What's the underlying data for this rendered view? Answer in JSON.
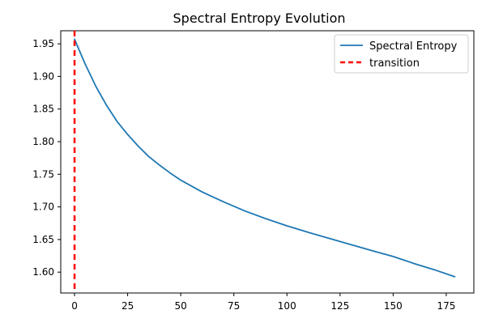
{
  "chart_data": {
    "type": "line",
    "title": "Spectral Entropy Evolution",
    "xlabel": "",
    "ylabel": "",
    "xlim": [
      -6.5,
      188
    ],
    "ylim": [
      1.568,
      1.97
    ],
    "xticks": [
      0,
      25,
      50,
      75,
      100,
      125,
      150,
      175
    ],
    "yticks": [
      1.6,
      1.65,
      1.7,
      1.75,
      1.8,
      1.85,
      1.9,
      1.95
    ],
    "grid": false,
    "legend_position": "top-right",
    "series": [
      {
        "name": "Spectral Entropy",
        "color": "#1f77b4",
        "style": "solid",
        "x": [
          0,
          5,
          10,
          15,
          20,
          25,
          30,
          35,
          40,
          45,
          50,
          60,
          70,
          80,
          90,
          100,
          110,
          125,
          140,
          150,
          160,
          170,
          179
        ],
        "y": [
          1.957,
          1.919,
          1.885,
          1.856,
          1.831,
          1.811,
          1.793,
          1.777,
          1.764,
          1.752,
          1.741,
          1.723,
          1.708,
          1.694,
          1.682,
          1.671,
          1.661,
          1.647,
          1.633,
          1.624,
          1.613,
          1.603,
          1.593
        ]
      }
    ],
    "annotations": [
      {
        "name": "transition",
        "type": "vline",
        "x": 0,
        "color": "#ff0000",
        "style": "dashed"
      }
    ]
  }
}
